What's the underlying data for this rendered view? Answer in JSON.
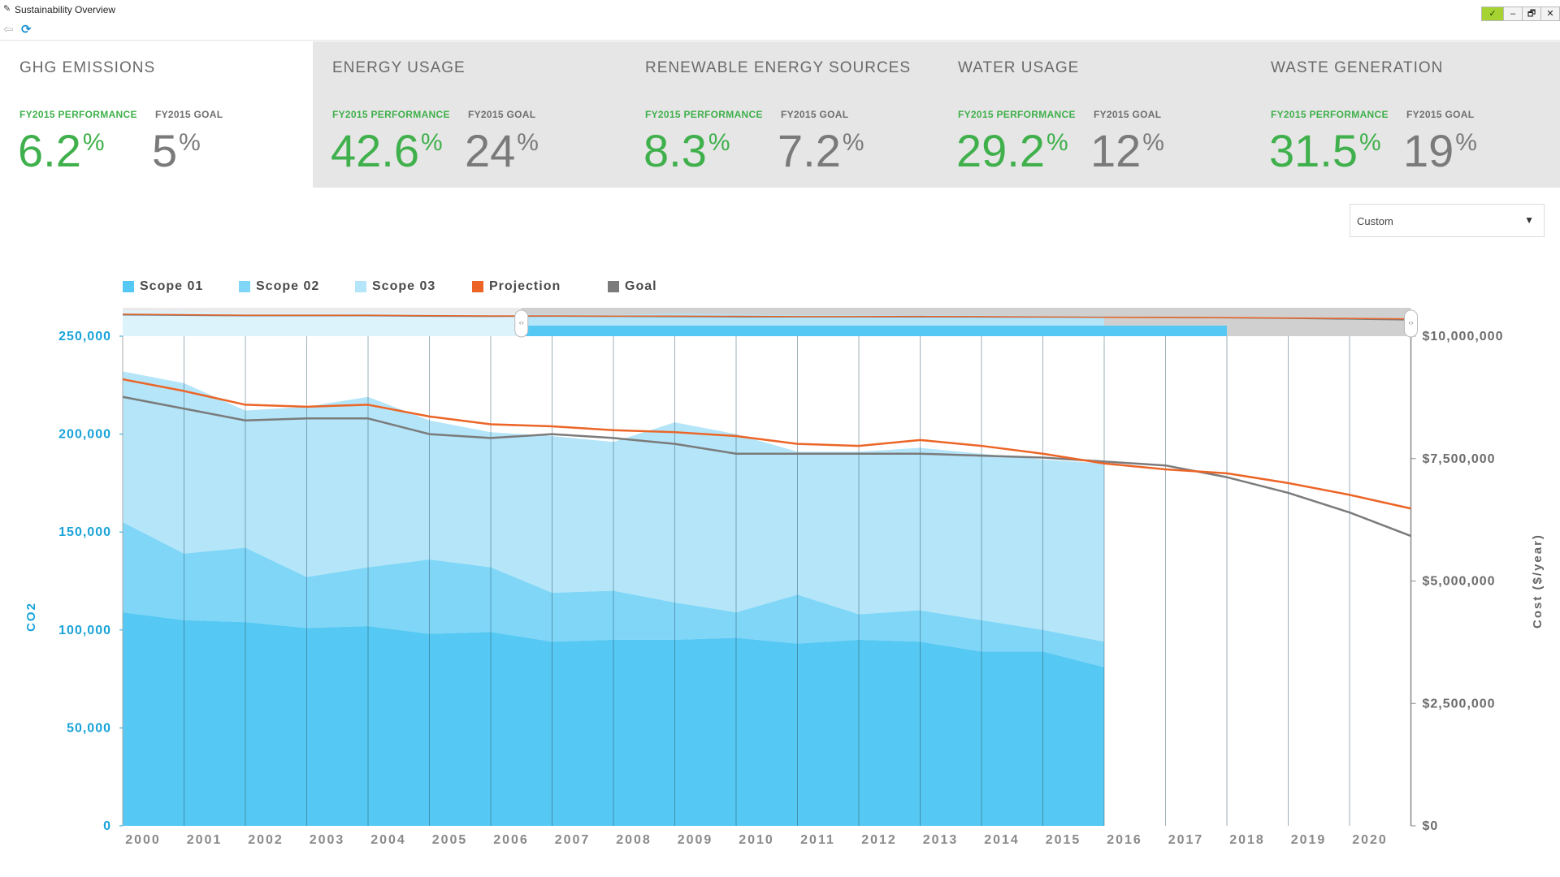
{
  "window": {
    "title": "Sustainability Overview",
    "buttons": [
      "✓",
      "–",
      "🗗",
      "✕"
    ]
  },
  "toolbar": {
    "back_icon": "back-arrow-icon",
    "refresh_icon": "refresh-icon"
  },
  "kpis": [
    {
      "title": "GHG EMISSIONS",
      "perf_label": "FY2015 PERFORMANCE",
      "perf": "6.2",
      "goal_label": "FY2015 GOAL",
      "goal": "5",
      "unit": "%",
      "active": true
    },
    {
      "title": "ENERGY USAGE",
      "perf_label": "FY2015 PERFORMANCE",
      "perf": "42.6",
      "goal_label": "FY2015 GOAL",
      "goal": "24",
      "unit": "%"
    },
    {
      "title": "RENEWABLE ENERGY SOURCES",
      "perf_label": "FY2015 PERFORMANCE",
      "perf": "8.3",
      "goal_label": "FY2015 GOAL",
      "goal": "7.2",
      "unit": "%"
    },
    {
      "title": "WATER USAGE",
      "perf_label": "FY2015 PERFORMANCE",
      "perf": "29.2",
      "goal_label": "FY2015 GOAL",
      "goal": "12",
      "unit": "%"
    },
    {
      "title": "WASTE GENERATION",
      "perf_label": "FY2015 PERFORMANCE",
      "perf": "31.5",
      "goal_label": "FY2015 GOAL",
      "goal": "19",
      "unit": "%"
    }
  ],
  "range_select": {
    "value": "Custom",
    "arrow": "▼"
  },
  "colors": {
    "scope1": "#55c8f3",
    "scope2": "#7fd6f7",
    "scope3": "#b4e5f9",
    "projection": "#ec6527",
    "goal": "#7b7b7b",
    "green": "#3fb04b",
    "blue_axis": "#1aa3d9",
    "active_card": "#ffffff"
  },
  "chart_data": {
    "type": "area",
    "x": [
      2000,
      2001,
      2002,
      2003,
      2004,
      2005,
      2006,
      2007,
      2008,
      2009,
      2010,
      2011,
      2012,
      2013,
      2014,
      2015,
      2016,
      2017,
      2018,
      2019,
      2020,
      2021
    ],
    "x_tick_labels": [
      "2000",
      "2001",
      "2002",
      "2003",
      "2004",
      "2005",
      "2006",
      "2007",
      "2008",
      "2009",
      "2010",
      "2011",
      "2012",
      "2013",
      "2014",
      "2015",
      "2016",
      "2017",
      "2018",
      "2019",
      "2020"
    ],
    "y_left": {
      "label": "CO2",
      "ticks": [
        0,
        50000,
        100000,
        150000,
        200000,
        250000
      ],
      "tick_labels": [
        "0",
        "50,000",
        "100,000",
        "150,000",
        "200,000",
        "250,000"
      ],
      "ylim": [
        0,
        250000
      ]
    },
    "y_right": {
      "label": "Cost ($/year)",
      "ticks": [
        0,
        2500000,
        5000000,
        7500000,
        10000000
      ],
      "tick_labels": [
        "$0",
        "$2,500,000",
        "$5,000,000",
        "$7,500,000",
        "$10,000,000"
      ],
      "ylim": [
        0,
        10000000
      ]
    },
    "legend_position": "top-left",
    "series": [
      {
        "name": "Scope 01",
        "kind": "stack",
        "x": [
          2000,
          2001,
          2002,
          2003,
          2004,
          2005,
          2006,
          2007,
          2008,
          2009,
          2010,
          2011,
          2012,
          2013,
          2014,
          2015,
          2016
        ],
        "values": [
          109000,
          105000,
          104000,
          101000,
          102000,
          98000,
          99000,
          94000,
          95000,
          95000,
          96000,
          93000,
          95000,
          94000,
          89000,
          89000,
          81000
        ]
      },
      {
        "name": "Scope 02",
        "kind": "stack",
        "x": [
          2000,
          2001,
          2002,
          2003,
          2004,
          2005,
          2006,
          2007,
          2008,
          2009,
          2010,
          2011,
          2012,
          2013,
          2014,
          2015,
          2016
        ],
        "values": [
          46000,
          34000,
          38000,
          26000,
          30000,
          38000,
          33000,
          25000,
          25000,
          19000,
          13000,
          25000,
          13000,
          16000,
          16000,
          11000,
          13000
        ]
      },
      {
        "name": "Scope 03",
        "kind": "stack",
        "x": [
          2000,
          2001,
          2002,
          2003,
          2004,
          2005,
          2006,
          2007,
          2008,
          2009,
          2010,
          2011,
          2012,
          2013,
          2014,
          2015,
          2016
        ],
        "values": [
          77000,
          87000,
          70000,
          87000,
          87000,
          71000,
          69000,
          80000,
          76000,
          92000,
          91000,
          73000,
          83000,
          83000,
          85000,
          87000,
          91000
        ]
      },
      {
        "name": "Projection",
        "kind": "line",
        "x": [
          2000,
          2001,
          2002,
          2003,
          2004,
          2005,
          2006,
          2007,
          2008,
          2009,
          2010,
          2011,
          2012,
          2013,
          2014,
          2015,
          2016,
          2017,
          2018,
          2019,
          2020,
          2021
        ],
        "values": [
          228000,
          222000,
          215000,
          214000,
          215000,
          209000,
          205000,
          204000,
          202000,
          201000,
          199000,
          195000,
          194000,
          197000,
          194000,
          190000,
          185000,
          182000,
          180000,
          175000,
          169000,
          162000
        ]
      },
      {
        "name": "Goal",
        "kind": "line",
        "x": [
          2000,
          2001,
          2002,
          2003,
          2004,
          2005,
          2006,
          2007,
          2008,
          2009,
          2010,
          2011,
          2012,
          2013,
          2014,
          2015,
          2016,
          2017,
          2018,
          2019,
          2020,
          2021
        ],
        "values": [
          219000,
          213000,
          207000,
          208000,
          208000,
          200000,
          198000,
          200000,
          198000,
          195000,
          190000,
          190000,
          190000,
          190000,
          189000,
          188000,
          186000,
          184000,
          178000,
          170000,
          160000,
          148000
        ]
      }
    ],
    "navigator": {
      "selected_range": [
        2006.5,
        2018
      ]
    }
  }
}
